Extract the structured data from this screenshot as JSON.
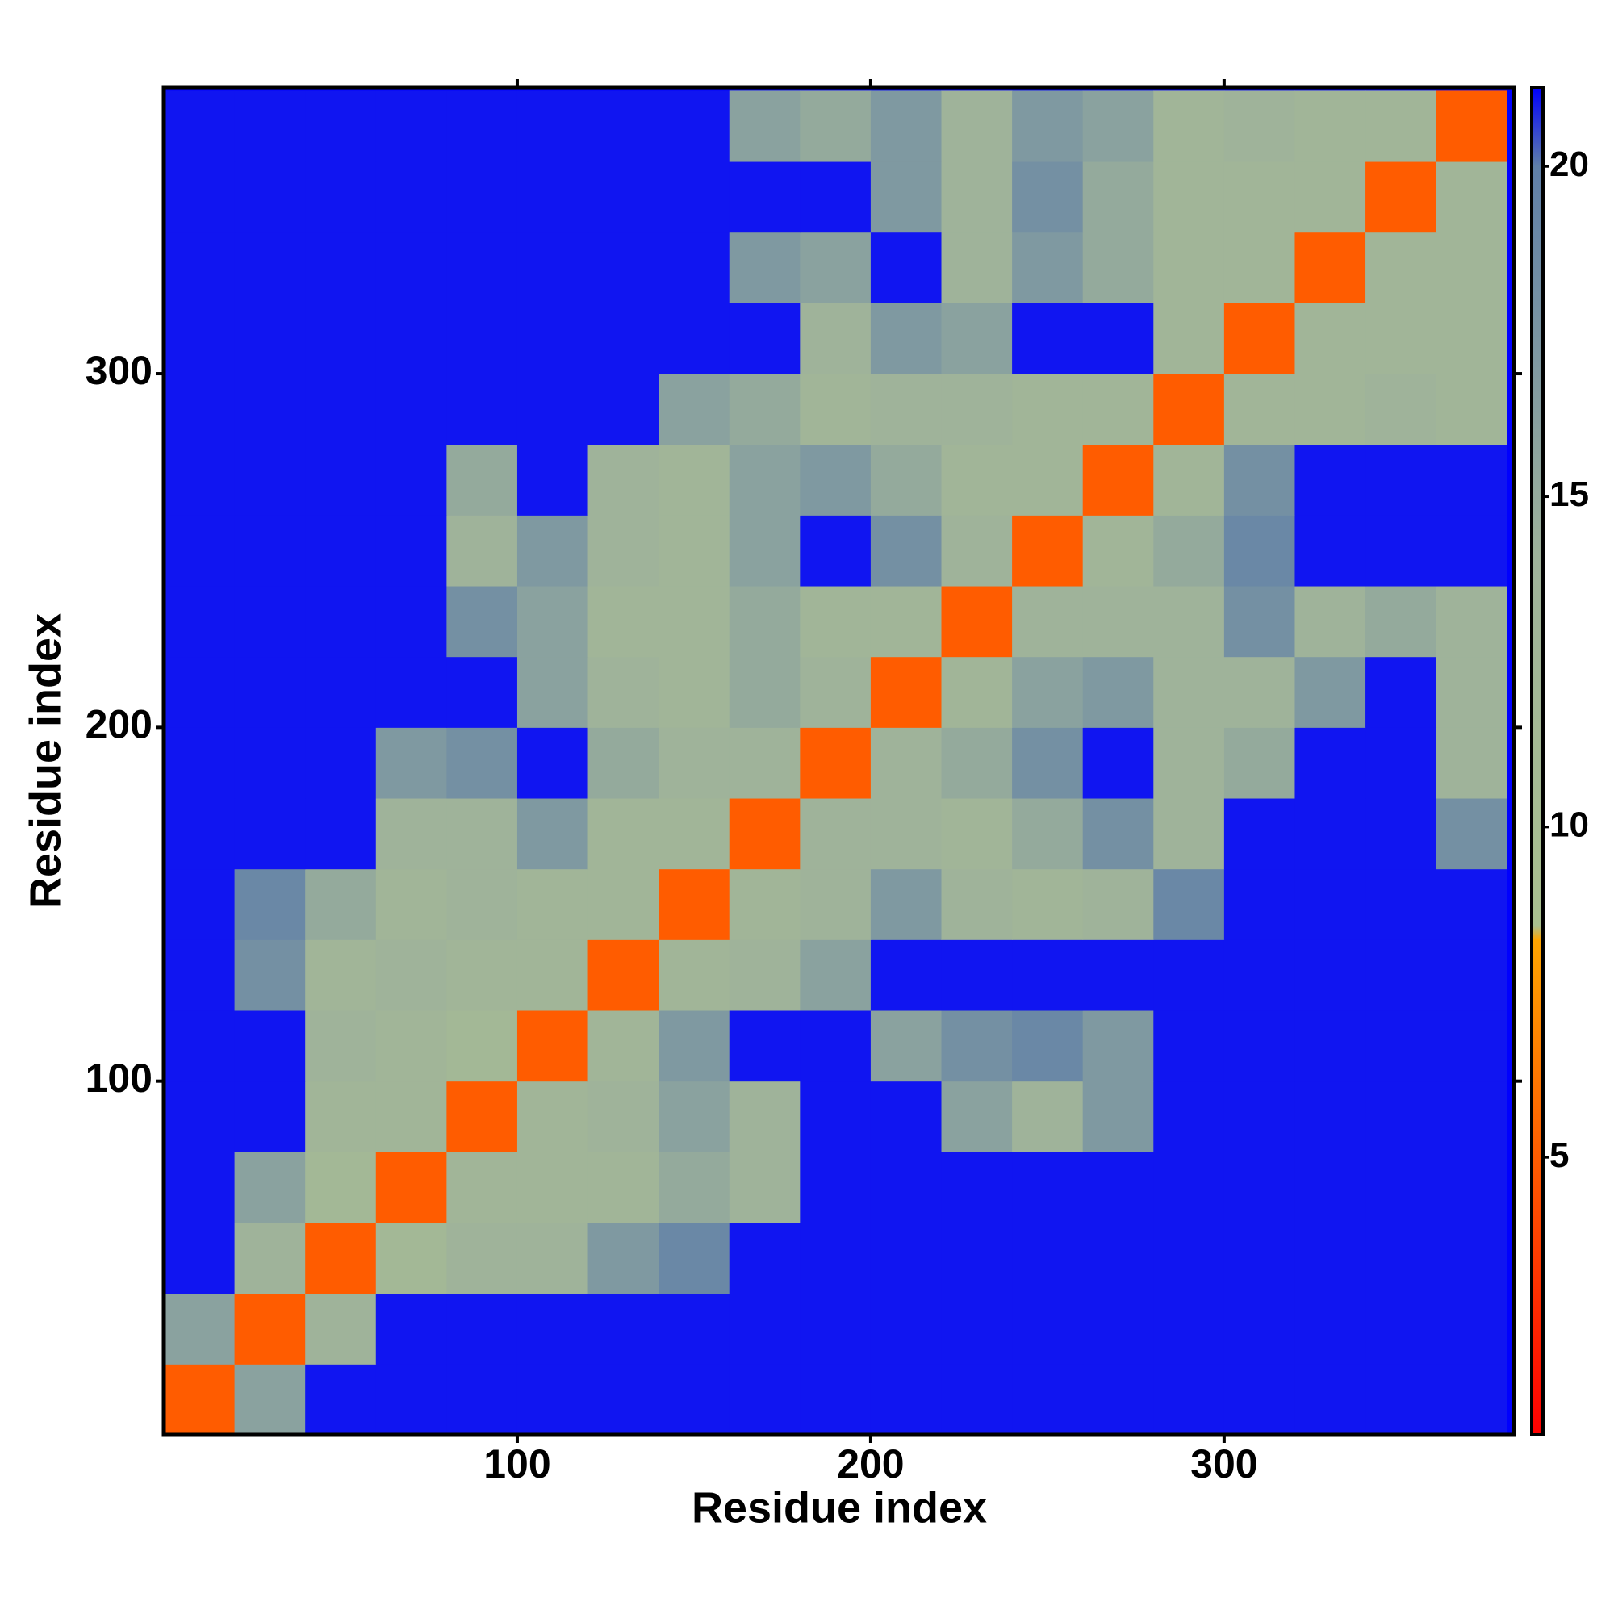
{
  "chart_data": {
    "type": "heatmap",
    "x_label": "Residue index",
    "y_label": "Residue index",
    "xlim": [
      0,
      382
    ],
    "ylim": [
      0,
      381
    ],
    "xticks": [
      100,
      200,
      300
    ],
    "yticks": [
      100,
      200,
      300
    ],
    "x_bins": [
      0,
      20,
      40,
      60,
      80,
      100,
      120,
      140,
      160,
      180,
      200,
      220,
      240,
      260,
      280,
      300,
      320,
      340,
      360,
      380
    ],
    "y_bins": [
      0,
      20,
      40,
      60,
      80,
      100,
      120,
      140,
      160,
      180,
      200,
      220,
      240,
      260,
      280,
      300,
      320,
      340,
      360,
      380
    ],
    "z": [
      [
        5,
        16,
        21,
        21,
        21,
        21,
        21,
        21,
        21,
        21,
        21,
        21,
        21,
        21,
        21,
        21,
        21,
        21,
        21
      ],
      [
        16,
        5,
        14,
        21,
        21,
        21,
        21,
        21,
        21,
        21,
        21,
        21,
        21,
        21,
        21,
        21,
        21,
        21,
        21
      ],
      [
        21,
        14,
        5,
        12,
        14,
        14,
        17,
        19,
        21,
        21,
        21,
        21,
        21,
        21,
        21,
        21,
        21,
        21,
        21
      ],
      [
        21,
        16,
        12,
        5,
        13,
        13,
        13,
        15,
        14,
        21,
        21,
        21,
        21,
        21,
        21,
        21,
        21,
        21,
        21
      ],
      [
        21,
        21,
        13,
        13,
        5,
        13,
        14,
        16,
        14,
        21,
        21,
        16,
        14,
        17,
        21,
        21,
        21,
        21,
        21
      ],
      [
        21,
        21,
        14,
        13,
        12,
        5,
        13,
        17,
        21,
        21,
        16,
        18,
        19,
        17,
        21,
        21,
        21,
        21,
        21
      ],
      [
        21,
        18,
        13,
        14,
        13,
        13,
        5,
        13,
        14,
        16,
        21,
        21,
        21,
        21,
        21,
        21,
        21,
        21,
        21
      ],
      [
        21,
        19,
        15,
        13,
        14,
        13,
        13,
        5,
        13,
        14,
        17,
        14,
        13,
        14,
        19,
        21,
        21,
        21,
        21
      ],
      [
        21,
        21,
        21,
        14,
        14,
        17,
        13,
        13,
        5,
        14,
        14,
        13,
        15,
        18,
        14,
        21,
        21,
        21,
        18
      ],
      [
        21,
        21,
        21,
        17,
        18,
        21,
        15,
        14,
        14,
        5,
        14,
        15,
        18,
        21,
        14,
        15,
        21,
        21,
        14
      ],
      [
        21,
        21,
        21,
        21,
        21,
        16,
        14,
        13,
        15,
        14,
        5,
        13,
        16,
        17,
        14,
        14,
        17,
        21,
        14
      ],
      [
        21,
        21,
        21,
        21,
        18,
        16,
        13,
        13,
        15,
        13,
        13,
        5,
        14,
        14,
        14,
        18,
        14,
        15,
        14
      ],
      [
        21,
        21,
        21,
        21,
        14,
        17,
        14,
        13,
        16,
        21,
        18,
        14,
        5,
        13,
        15,
        19,
        21,
        21,
        21
      ],
      [
        21,
        21,
        21,
        21,
        15,
        21,
        14,
        13,
        16,
        17,
        15,
        13,
        13,
        5,
        13,
        18,
        21,
        21,
        21
      ],
      [
        21,
        21,
        21,
        21,
        21,
        21,
        21,
        16,
        15,
        13,
        14,
        14,
        13,
        13,
        5,
        13,
        13,
        14,
        13
      ],
      [
        21,
        21,
        21,
        21,
        21,
        21,
        21,
        21,
        21,
        14,
        17,
        16,
        21,
        21,
        13,
        5,
        13,
        13,
        13
      ],
      [
        21,
        21,
        21,
        21,
        21,
        21,
        21,
        21,
        17,
        16,
        21,
        14,
        17,
        15,
        13,
        13,
        5,
        13,
        13
      ],
      [
        21,
        21,
        21,
        21,
        21,
        21,
        21,
        21,
        21,
        21,
        17,
        14,
        18,
        15,
        13,
        13,
        13,
        5,
        13
      ],
      [
        21,
        21,
        21,
        21,
        21,
        21,
        21,
        21,
        16,
        15,
        17,
        14,
        17,
        16,
        13,
        14,
        13,
        13,
        5
      ]
    ],
    "clim": [
      0.8,
      21.2
    ],
    "cticks": [
      5,
      10,
      15,
      20
    ],
    "colorscale": [
      [
        0.8,
        "#ff0000"
      ],
      [
        8.3,
        "#ffa500"
      ],
      [
        8.5,
        "#a9c08f"
      ],
      [
        14,
        "#9fb39a"
      ],
      [
        20,
        "#5f7fa8"
      ],
      [
        21.2,
        "#0000ff"
      ]
    ]
  }
}
